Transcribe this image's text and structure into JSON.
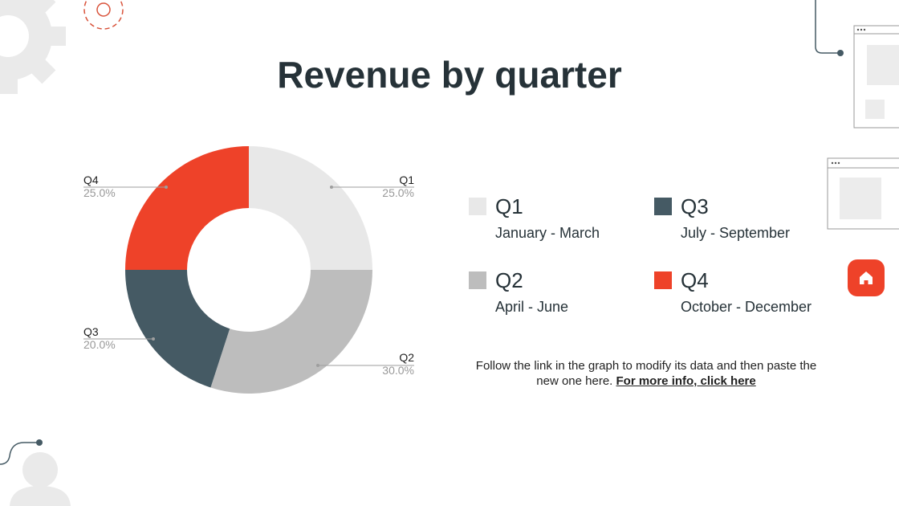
{
  "title": "Revenue by quarter",
  "chart_data": {
    "type": "pie",
    "donut": true,
    "categories": [
      "Q1",
      "Q2",
      "Q3",
      "Q4"
    ],
    "values": [
      25.0,
      30.0,
      20.0,
      25.0
    ],
    "labels": [
      "25.0%",
      "30.0%",
      "20.0%",
      "25.0%"
    ],
    "colors": [
      "#e8e8e8",
      "#bdbdbd",
      "#455a64",
      "#ee4229"
    ],
    "legend_placement": "right"
  },
  "legend": [
    {
      "name": "Q1",
      "desc": "January - March"
    },
    {
      "name": "Q2",
      "desc": "April - June"
    },
    {
      "name": "Q3",
      "desc": "July - September"
    },
    {
      "name": "Q4",
      "desc": "October - December"
    }
  ],
  "note": {
    "text": "Follow the link in the graph to modify its data and then paste the new one here. ",
    "link": "For more info, click here"
  },
  "icons": {
    "decor": [
      "gear-icon",
      "gear-outline-icon",
      "browser-window-icon",
      "user-icon"
    ],
    "home": "home-icon"
  },
  "accent": "#ee4229"
}
